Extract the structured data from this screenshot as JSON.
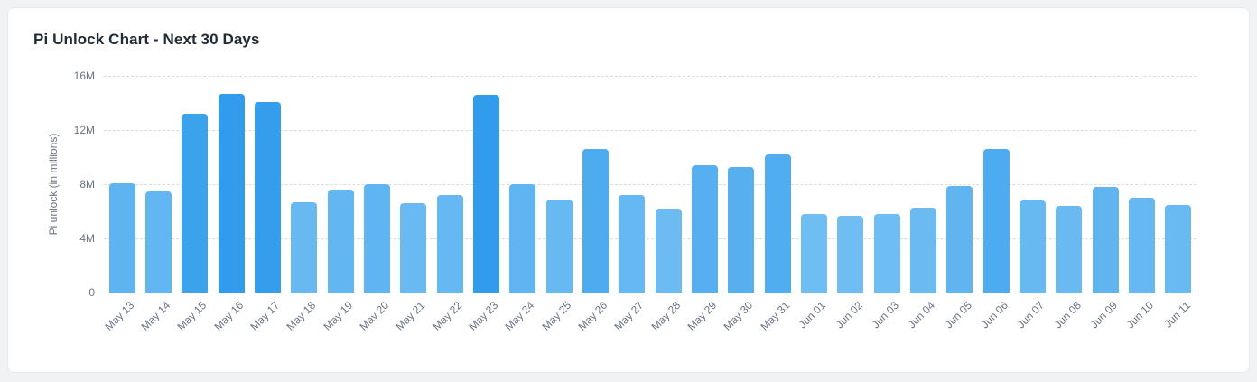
{
  "page": {
    "background": "#f1f2f4",
    "card_background": "#ffffff"
  },
  "header": {
    "title": "Pi Unlock Chart - Next 30 Days"
  },
  "chart_data": {
    "type": "bar",
    "title": "Pi Unlock Chart - Next 30 Days",
    "xlabel": "",
    "ylabel": "Pi unlock (in millions)",
    "ylim": [
      0,
      16
    ],
    "ytick_values": [
      0,
      4,
      8,
      12,
      16
    ],
    "ytick_labels": [
      "0",
      "4M",
      "8M",
      "12M",
      "16M"
    ],
    "grid": true,
    "legend": false,
    "unit": "M",
    "bar_color_low": "#6fbdf3",
    "bar_color_high": "#309ceb",
    "categories": [
      "May 13",
      "May 14",
      "May 15",
      "May 16",
      "May 17",
      "May 18",
      "May 19",
      "May 20",
      "May 21",
      "May 22",
      "May 23",
      "May 24",
      "May 25",
      "May 26",
      "May 27",
      "May 28",
      "May 29",
      "May 30",
      "May 31",
      "Jun 01",
      "Jun 02",
      "Jun 03",
      "Jun 04",
      "Jun 05",
      "Jun 06",
      "Jun 07",
      "Jun 08",
      "Jun 09",
      "Jun 10",
      "Jun 11"
    ],
    "values": [
      8.1,
      7.5,
      13.2,
      14.7,
      14.1,
      6.7,
      7.6,
      8.0,
      6.6,
      7.2,
      14.6,
      8.0,
      6.9,
      10.6,
      7.2,
      6.2,
      9.4,
      9.3,
      10.2,
      5.8,
      5.7,
      5.8,
      6.3,
      7.9,
      10.6,
      6.8,
      6.4,
      7.8,
      7.0,
      6.5
    ]
  }
}
